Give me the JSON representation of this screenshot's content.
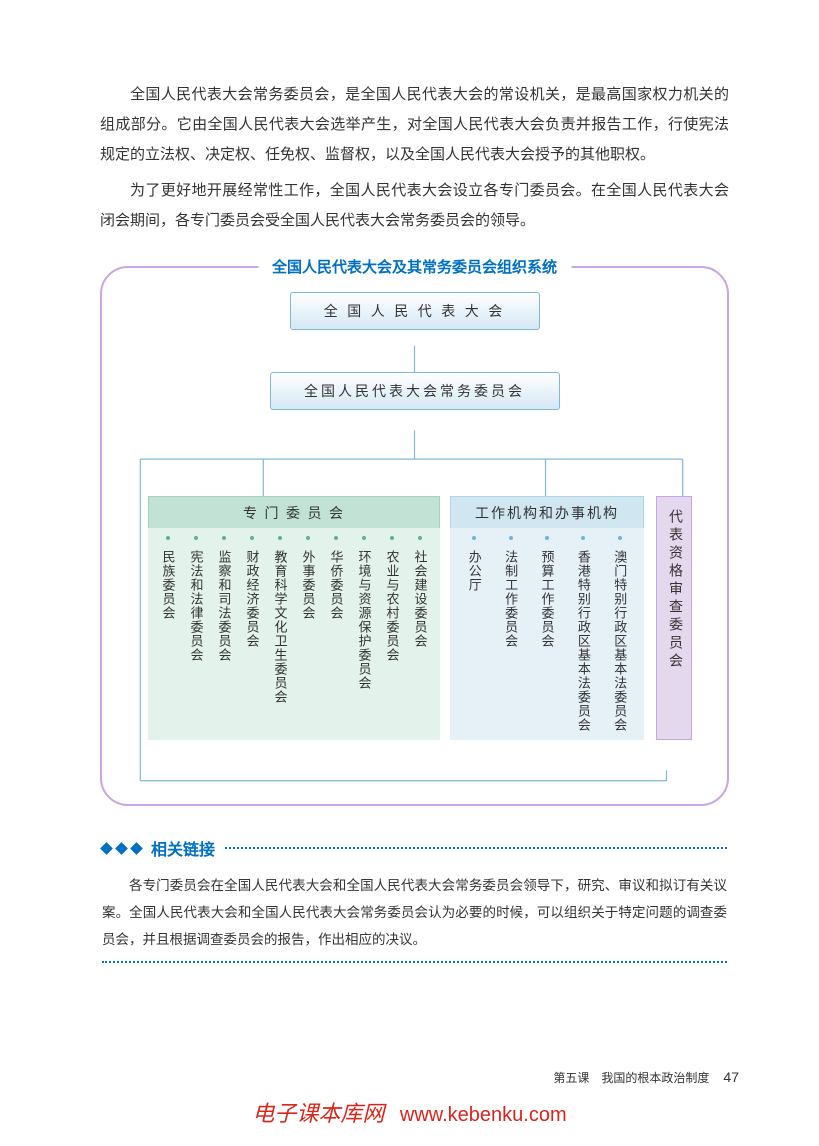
{
  "paragraphs": {
    "p1": "全国人民代表大会常务委员会，是全国人民代表大会的常设机关，是最高国家权力机关的组成部分。它由全国人民代表大会选举产生，对全国人民代表大会负责并报告工作，行使宪法规定的立法权、决定权、任免权、监督权，以及全国人民代表大会授予的其他职权。",
    "p2": "为了更好地开展经常性工作，全国人民代表大会设立各专门委员会。在全国人民代表大会闭会期间，各专门委员会受全国人民代表大会常务委员会的领导。"
  },
  "diagram": {
    "title": "全国人民代表大会及其常务委员会组织系统",
    "node_top": "全 国 人 民 代 表 大 会",
    "node_mid": "全国人民代表大会常务委员会",
    "group_left": {
      "header": "专 门 委 员 会",
      "items": [
        "社会建设委员会",
        "农业与农村委员会",
        "环境与资源保护委员会",
        "华侨委员会",
        "外事委员会",
        "教育科学文化卫生委员会",
        "财政经济委员会",
        "监察和司法委员会",
        "宪法和法律委员会",
        "民族委员会"
      ],
      "header_bg": "#c2e2d5",
      "body_bg": "#e3f2eb",
      "dot_color": "#5fb08d"
    },
    "group_right": {
      "header": "工作机构和办事机构",
      "items": [
        "澳门特别行政区基本法委员会",
        "香港特别行政区基本法委员会",
        "预算工作委员会",
        "法制工作委员会",
        "办公厅"
      ],
      "header_bg": "#d0e6f0",
      "body_bg": "#e6f1f7",
      "dot_color": "#6fb5d6"
    },
    "purple_box": {
      "label": "代表资格审查委员会",
      "bg": "#e4d8ef"
    },
    "colors": {
      "border": "#c9a6e0",
      "node_border": "#7fb8d9",
      "title_color": "#0070c0",
      "connector": "#7fb8d9"
    }
  },
  "related_links": {
    "title": "相关链接",
    "body": "各专门委员会在全国人民代表大会和全国人民代表大会常务委员会领导下，研究、审议和拟订有关议案。全国人民代表大会和全国人民代表大会常务委员会认为必要的时候，可以组织关于特定问题的调查委员会，并且根据调查委员会的报告，作出相应的决议。",
    "title_color": "#0070c0"
  },
  "footer": {
    "lesson": "第五课　我国的根本政治制度",
    "page": "47"
  },
  "watermark": {
    "brand": "电子课本库网",
    "url": "www.kebenku.com",
    "color": "#d9261c"
  }
}
